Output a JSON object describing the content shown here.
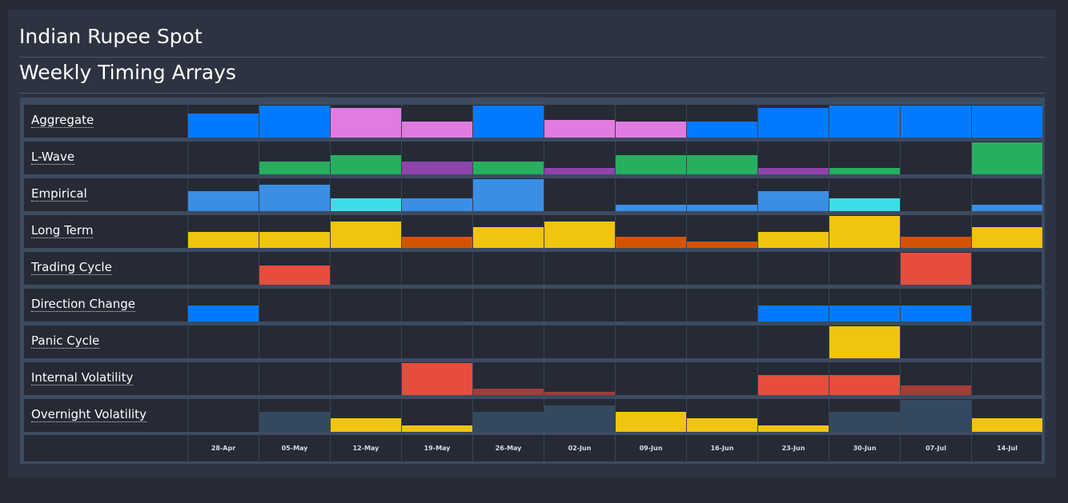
{
  "page": {
    "title": "Indian Rupee Spot",
    "subtitle": "Weekly Timing Arrays"
  },
  "chart_data": {
    "type": "heatmap",
    "title": "Weekly Timing Arrays",
    "weeks": [
      "28-Apr",
      "05-May",
      "12-May",
      "19-May",
      "26-May",
      "02-Jun",
      "09-Jun",
      "16-Jun",
      "23-Jun",
      "30-Jun",
      "07-Jul",
      "14-Jul"
    ],
    "value_scale": [
      0,
      1
    ],
    "rows": [
      {
        "name": "Aggregate",
        "values": [
          0.75,
          1.0,
          0.92,
          0.5,
          1.0,
          0.55,
          0.5,
          0.5,
          0.92,
          1.0,
          1.0,
          1.0
        ],
        "colors": [
          "#007bff",
          "#007bff",
          "#e07be0",
          "#e07be0",
          "#007bff",
          "#e07be0",
          "#e07be0",
          "#007bff",
          "#007bff",
          "#007bff",
          "#007bff",
          "#007bff"
        ]
      },
      {
        "name": "L-Wave",
        "values": [
          0,
          0.4,
          0.6,
          0.4,
          0.4,
          0.2,
          0.6,
          0.6,
          0.2,
          0.2,
          0,
          1.0
        ],
        "colors": [
          "#27ae60",
          "#27ae60",
          "#27ae60",
          "#8e44ad",
          "#27ae60",
          "#8e44ad",
          "#27ae60",
          "#27ae60",
          "#8e44ad",
          "#27ae60",
          "#27ae60",
          "#27ae60"
        ]
      },
      {
        "name": "Empirical",
        "values": [
          0.62,
          0.82,
          0.4,
          0.4,
          1.0,
          0,
          0.2,
          0.2,
          0.62,
          0.4,
          0,
          0.2
        ],
        "colors": [
          "#3a8ee6",
          "#3a8ee6",
          "#3ae0e6",
          "#3a8ee6",
          "#3a8ee6",
          "#3a8ee6",
          "#3a8ee6",
          "#3a8ee6",
          "#3a8ee6",
          "#3ae0e6",
          "#3a8ee6",
          "#3a8ee6"
        ]
      },
      {
        "name": "Long Term",
        "values": [
          0.5,
          0.5,
          0.82,
          0.35,
          0.65,
          0.82,
          0.35,
          0.2,
          0.5,
          1.0,
          0.35,
          0.65
        ],
        "colors": [
          "#f1c40f",
          "#f1c40f",
          "#f1c40f",
          "#d35400",
          "#f1c40f",
          "#f1c40f",
          "#d35400",
          "#d35400",
          "#f1c40f",
          "#f1c40f",
          "#d35400",
          "#f1c40f"
        ]
      },
      {
        "name": "Trading Cycle",
        "values": [
          0,
          0.6,
          0,
          0,
          0,
          0,
          0,
          0,
          0,
          0,
          1.0,
          0
        ],
        "colors": [
          "#e74c3c",
          "#e74c3c",
          "#e74c3c",
          "#e74c3c",
          "#e74c3c",
          "#e74c3c",
          "#e74c3c",
          "#e74c3c",
          "#e74c3c",
          "#e74c3c",
          "#e74c3c",
          "#e74c3c"
        ]
      },
      {
        "name": "Direction Change",
        "values": [
          0.5,
          0,
          0,
          0,
          0,
          0,
          0,
          0,
          0.5,
          0.5,
          0.5,
          0
        ],
        "colors": [
          "#007bff",
          "#007bff",
          "#007bff",
          "#007bff",
          "#007bff",
          "#007bff",
          "#007bff",
          "#007bff",
          "#007bff",
          "#007bff",
          "#007bff",
          "#007bff"
        ]
      },
      {
        "name": "Panic Cycle",
        "values": [
          0,
          0,
          0,
          0,
          0,
          0,
          0,
          0,
          0,
          1.0,
          0,
          0
        ],
        "colors": [
          "#f1c40f",
          "#f1c40f",
          "#f1c40f",
          "#f1c40f",
          "#f1c40f",
          "#f1c40f",
          "#f1c40f",
          "#f1c40f",
          "#f1c40f",
          "#f1c40f",
          "#f1c40f",
          "#f1c40f"
        ]
      },
      {
        "name": "Internal Volatility",
        "values": [
          0,
          0,
          0,
          1.0,
          0.2,
          0.1,
          0,
          0,
          0.62,
          0.62,
          0.3,
          0
        ],
        "colors": [
          "#e74c3c",
          "#e74c3c",
          "#e74c3c",
          "#e74c3c",
          "#a43c38",
          "#a43c38",
          "#e74c3c",
          "#e74c3c",
          "#e74c3c",
          "#e74c3c",
          "#a43c38",
          "#e74c3c"
        ]
      },
      {
        "name": "Overnight Volatility",
        "values": [
          0,
          0.62,
          0.42,
          0.2,
          0.62,
          0.82,
          0.62,
          0.42,
          0.2,
          0.62,
          1.0,
          0.42
        ],
        "colors": [
          "#34495e",
          "#34495e",
          "#f1c40f",
          "#f1c40f",
          "#34495e",
          "#34495e",
          "#f1c40f",
          "#f1c40f",
          "#f1c40f",
          "#34495e",
          "#34495e",
          "#f1c40f"
        ]
      }
    ]
  }
}
